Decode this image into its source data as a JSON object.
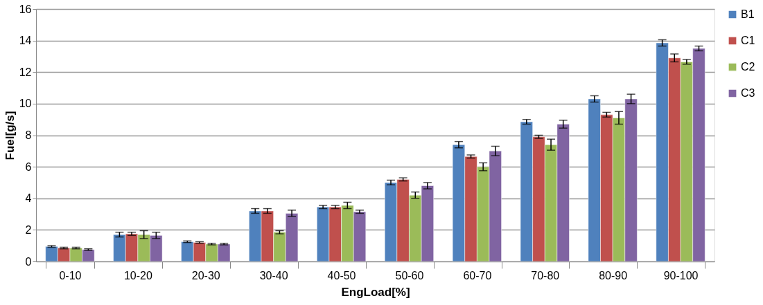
{
  "chart_data": {
    "type": "bar",
    "xlabel": "EngLoad[%]",
    "ylabel": "Fuel[g/s]",
    "categories": [
      "0-10",
      "10-20",
      "20-30",
      "30-40",
      "40-50",
      "50-60",
      "60-70",
      "70-80",
      "80-90",
      "90-100"
    ],
    "series": [
      {
        "name": "B1",
        "color": "#4f81bd",
        "values": [
          0.95,
          1.7,
          1.25,
          3.2,
          3.45,
          5.0,
          7.4,
          8.85,
          10.3,
          13.85
        ],
        "errors": [
          0.05,
          0.15,
          0.05,
          0.15,
          0.1,
          0.15,
          0.2,
          0.15,
          0.2,
          0.2
        ]
      },
      {
        "name": "C1",
        "color": "#c0504d",
        "values": [
          0.85,
          1.75,
          1.2,
          3.2,
          3.45,
          5.2,
          6.65,
          7.9,
          9.3,
          12.9
        ],
        "errors": [
          0.05,
          0.1,
          0.05,
          0.15,
          0.1,
          0.1,
          0.1,
          0.1,
          0.15,
          0.25
        ]
      },
      {
        "name": "C2",
        "color": "#9bbb59",
        "values": [
          0.85,
          1.7,
          1.1,
          1.85,
          3.55,
          4.2,
          6.0,
          7.4,
          9.1,
          12.65
        ],
        "errors": [
          0.05,
          0.25,
          0.05,
          0.1,
          0.2,
          0.2,
          0.25,
          0.35,
          0.4,
          0.15
        ]
      },
      {
        "name": "C3",
        "color": "#8064a2",
        "values": [
          0.75,
          1.65,
          1.1,
          3.05,
          3.15,
          4.8,
          7.0,
          8.7,
          10.3,
          13.5
        ],
        "errors": [
          0.05,
          0.2,
          0.05,
          0.2,
          0.1,
          0.2,
          0.3,
          0.25,
          0.3,
          0.15
        ]
      }
    ],
    "ylim": [
      0,
      16
    ],
    "yticks": [
      0,
      2,
      4,
      6,
      8,
      10,
      12,
      14,
      16
    ],
    "grid": "y",
    "legend": "right"
  }
}
